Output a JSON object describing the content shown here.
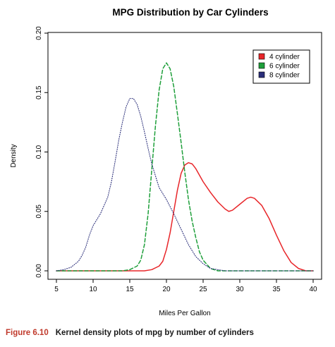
{
  "chart_data": {
    "type": "line",
    "title": "MPG Distribution by Car Cylinders",
    "xlabel": "Miles Per Gallon",
    "ylabel": "Density",
    "xlim": [
      4,
      41
    ],
    "ylim": [
      0,
      0.2
    ],
    "x_ticks": [
      5,
      10,
      15,
      20,
      25,
      30,
      35,
      40
    ],
    "y_ticks": [
      0.0,
      0.05,
      0.1,
      0.15,
      0.2
    ],
    "x_tick_labels": [
      "5",
      "10",
      "15",
      "20",
      "25",
      "30",
      "35",
      "40"
    ],
    "y_tick_labels": [
      "0.00",
      "0.05",
      "0.10",
      "0.15",
      "0.20"
    ],
    "legend_position": "top-right",
    "series": [
      {
        "name": "4 cylinder",
        "color": "#e8262a",
        "line_style": "solid",
        "x": [
          5,
          15,
          16,
          17,
          18,
          19,
          19.5,
          20,
          20.5,
          21,
          21.5,
          22,
          22.5,
          23,
          23.5,
          24,
          25,
          26,
          27,
          28,
          28.5,
          29,
          30,
          31,
          31.5,
          32,
          33,
          34,
          35,
          36,
          37,
          38,
          39,
          40
        ],
        "y": [
          0.0,
          0.0,
          0.0,
          0.0,
          0.001,
          0.004,
          0.008,
          0.018,
          0.032,
          0.05,
          0.068,
          0.082,
          0.089,
          0.091,
          0.09,
          0.086,
          0.075,
          0.066,
          0.058,
          0.052,
          0.05,
          0.051,
          0.056,
          0.061,
          0.062,
          0.061,
          0.055,
          0.044,
          0.03,
          0.017,
          0.007,
          0.002,
          0.0,
          0.0
        ]
      },
      {
        "name": "6 cylinder",
        "color": "#1e9f3a",
        "line_style": "dashed",
        "x": [
          5,
          14,
          15,
          16,
          16.5,
          17,
          17.5,
          18,
          18.5,
          19,
          19.5,
          20,
          20.5,
          21,
          21.5,
          22,
          22.5,
          23,
          23.5,
          24,
          24.5,
          25,
          26,
          27,
          28,
          30,
          35,
          40
        ],
        "y": [
          0.0,
          0.0,
          0.001,
          0.004,
          0.009,
          0.022,
          0.048,
          0.085,
          0.122,
          0.152,
          0.17,
          0.175,
          0.17,
          0.155,
          0.132,
          0.108,
          0.083,
          0.06,
          0.042,
          0.028,
          0.016,
          0.009,
          0.002,
          0.0,
          0.0,
          0.0,
          0.0,
          0.0
        ]
      },
      {
        "name": "8 cylinder",
        "color": "#2b2f7a",
        "line_style": "dotted",
        "x": [
          5,
          6,
          7,
          8,
          8.5,
          9,
          9.5,
          10,
          11,
          12,
          12.5,
          13,
          13.5,
          14,
          14.5,
          15,
          15.5,
          16,
          16.5,
          17,
          17.5,
          18,
          18.5,
          19,
          20,
          21,
          22,
          23,
          24,
          25,
          26,
          27,
          28,
          30,
          40
        ],
        "y": [
          0.0,
          0.001,
          0.003,
          0.008,
          0.013,
          0.02,
          0.03,
          0.038,
          0.048,
          0.062,
          0.075,
          0.092,
          0.11,
          0.125,
          0.138,
          0.145,
          0.145,
          0.14,
          0.13,
          0.117,
          0.103,
          0.09,
          0.08,
          0.07,
          0.06,
          0.048,
          0.035,
          0.022,
          0.012,
          0.006,
          0.002,
          0.001,
          0.0,
          0.0,
          0.0
        ]
      }
    ]
  },
  "caption": {
    "figure_label": "Figure 6.10",
    "text": "Kernel density plots of mpg by number of cylinders"
  }
}
